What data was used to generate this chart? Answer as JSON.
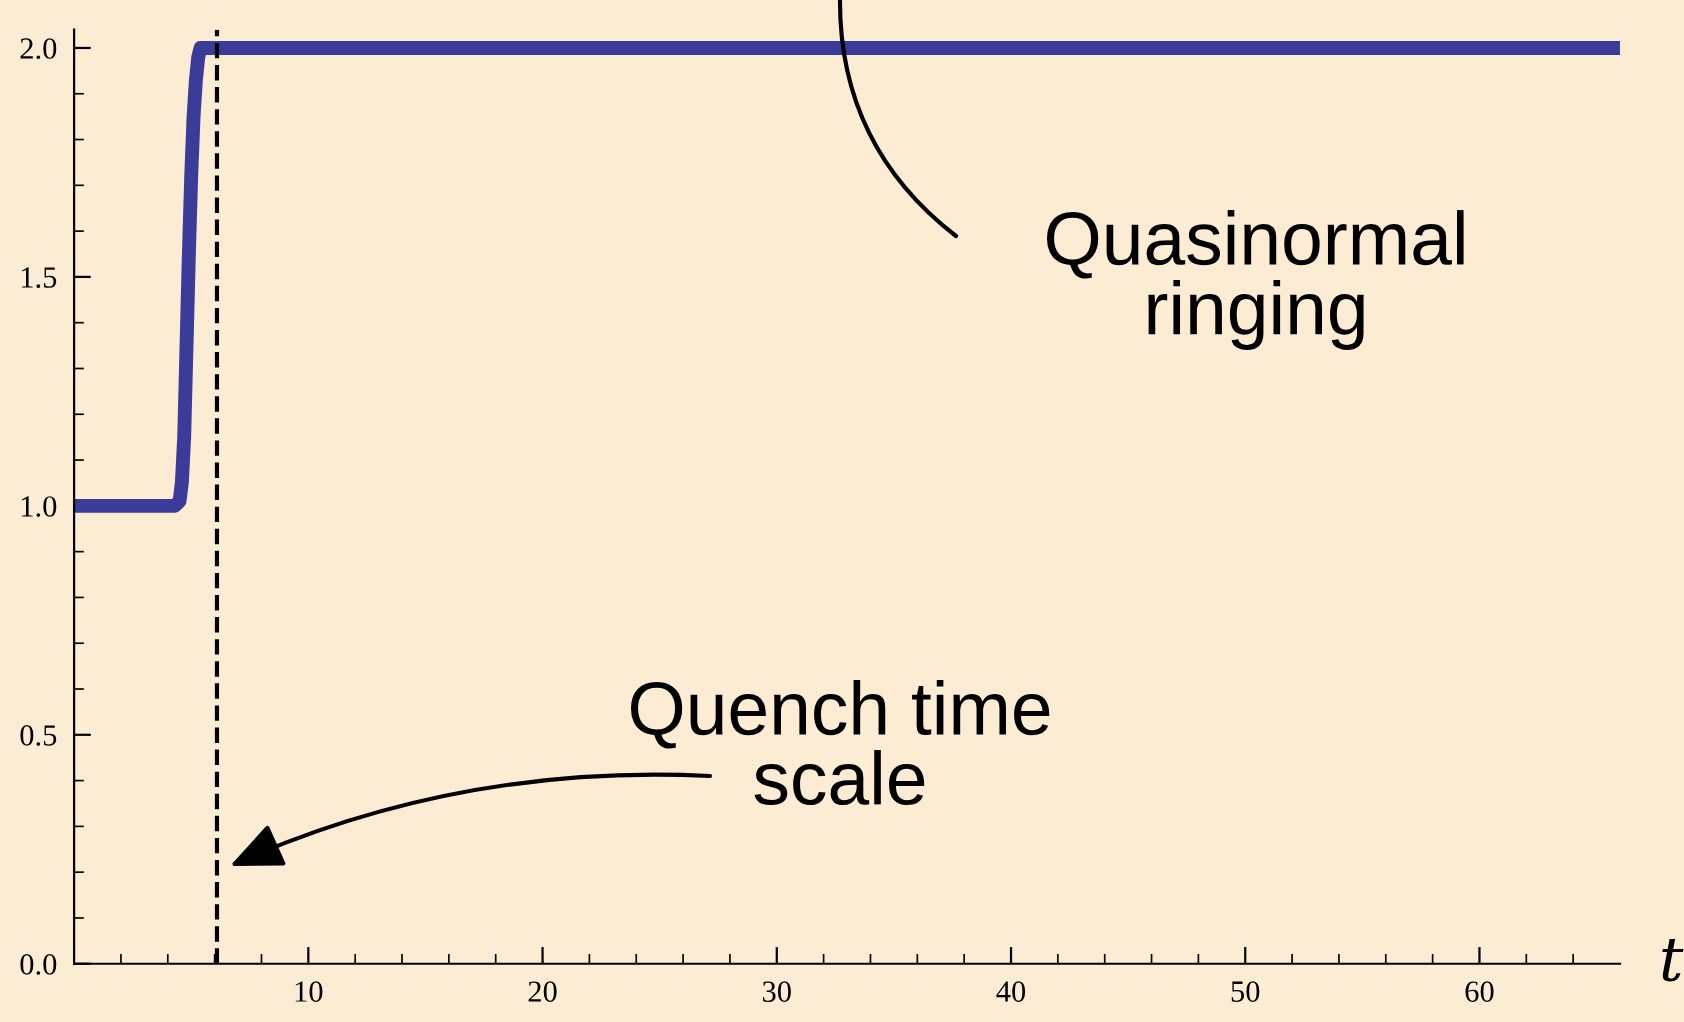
{
  "chart_data": {
    "type": "line",
    "xlabel": "t",
    "x": [
      0,
      4.3,
      4.5,
      4.6,
      4.7,
      4.8,
      4.9,
      5.0,
      5.1,
      5.2,
      5.3,
      5.4,
      5.5,
      66
    ],
    "series": [
      {
        "color": "#3b3b9a",
        "values": [
          1,
          1,
          1.01,
          1.05,
          1.15,
          1.35,
          1.55,
          1.72,
          1.85,
          1.93,
          1.98,
          2.0,
          2.0,
          2.0
        ]
      }
    ],
    "xlim": [
      0,
      66
    ],
    "ylim": [
      0,
      2.04
    ],
    "xticks": [
      {
        "value": 2,
        "label": null
      },
      {
        "value": 4,
        "label": null
      },
      {
        "value": 6,
        "label": null
      },
      {
        "value": 8,
        "label": null
      },
      10,
      {
        "value": 12,
        "label": null
      },
      {
        "value": 14,
        "label": null
      },
      {
        "value": 16,
        "label": null
      },
      {
        "value": 18,
        "label": null
      },
      20,
      {
        "value": 22,
        "label": null
      },
      {
        "value": 24,
        "label": null
      },
      {
        "value": 26,
        "label": null
      },
      {
        "value": 28,
        "label": null
      },
      30,
      {
        "value": 32,
        "label": null
      },
      {
        "value": 34,
        "label": null
      },
      {
        "value": 36,
        "label": null
      },
      {
        "value": 38,
        "label": null
      },
      40,
      {
        "value": 42,
        "label": null
      },
      {
        "value": 44,
        "label": null
      },
      {
        "value": 46,
        "label": null
      },
      {
        "value": 48,
        "label": null
      },
      50,
      {
        "value": 52,
        "label": null
      },
      {
        "value": 54,
        "label": null
      },
      {
        "value": 56,
        "label": null
      },
      {
        "value": 58,
        "label": null
      },
      60,
      {
        "value": 62,
        "label": null
      },
      {
        "value": 64,
        "label": null
      }
    ],
    "yticks": [
      {
        "value": 0,
        "label": "0.0"
      },
      {
        "value": 0.1,
        "label": null
      },
      {
        "value": 0.2,
        "label": null
      },
      {
        "value": 0.3,
        "label": null
      },
      {
        "value": 0.4,
        "label": null
      },
      {
        "value": 0.5,
        "label": "0.5"
      },
      {
        "value": 0.6,
        "label": null
      },
      {
        "value": 0.7,
        "label": null
      },
      {
        "value": 0.8,
        "label": null
      },
      {
        "value": 0.9,
        "label": null
      },
      {
        "value": 1.0,
        "label": "1.0"
      },
      {
        "value": 1.1,
        "label": null
      },
      {
        "value": 1.2,
        "label": null
      },
      {
        "value": 1.3,
        "label": null
      },
      {
        "value": 1.4,
        "label": null
      },
      {
        "value": 1.5,
        "label": "1.5"
      },
      {
        "value": 1.6,
        "label": null
      },
      {
        "value": 1.7,
        "label": null
      },
      {
        "value": 1.8,
        "label": null
      },
      {
        "value": 1.9,
        "label": null
      },
      {
        "value": 2.0,
        "label": "2.0"
      }
    ],
    "ref_lines": [
      {
        "axis": "x",
        "value": 6.1,
        "color": "#000000",
        "line_style": "dashed"
      }
    ],
    "annotations": [
      "Quasinormal\nringing",
      "Quench time\nscale"
    ],
    "grid": false,
    "legend": false,
    "marker": "none",
    "line_style": "solid"
  }
}
